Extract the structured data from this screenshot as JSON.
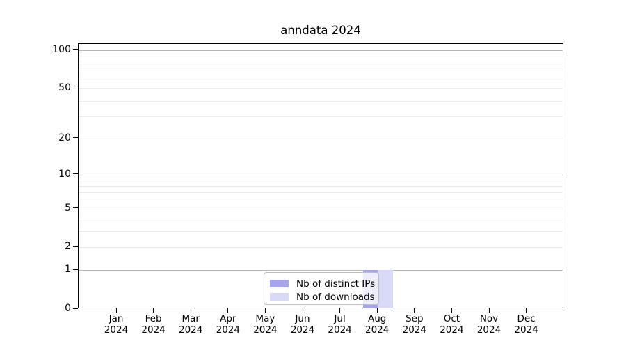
{
  "title": "anndata 2024",
  "colors": {
    "distinct_ips": "#a5a5ee",
    "downloads": "#d9d9f8",
    "grid_major": "#b9b9b9",
    "grid_minor": "#ebebeb",
    "axis": "#000000",
    "legend_border": "#c0c0c0"
  },
  "legend": {
    "items": [
      {
        "label": "Nb of distinct IPs",
        "color": "#a5a5ee"
      },
      {
        "label": "Nb of downloads",
        "color": "#d9d9f8"
      }
    ]
  },
  "x_axis": {
    "months": [
      "Jan",
      "Feb",
      "Mar",
      "Apr",
      "May",
      "Jun",
      "Jul",
      "Aug",
      "Sep",
      "Oct",
      "Nov",
      "Dec"
    ],
    "year": "2024"
  },
  "y_axis": {
    "tick_values": [
      100,
      50,
      20,
      10,
      5,
      2,
      1,
      0
    ],
    "major_gridline_values": [
      1,
      10,
      100
    ],
    "light_gridline_values": [
      2,
      5,
      20,
      50
    ],
    "minor_gridline_values": [
      3,
      4,
      6,
      7,
      8,
      9,
      30,
      40,
      60,
      70,
      80,
      90
    ]
  },
  "chart_data": {
    "type": "bar",
    "title": "anndata 2024",
    "categories": [
      "Jan 2024",
      "Feb 2024",
      "Mar 2024",
      "Apr 2024",
      "May 2024",
      "Jun 2024",
      "Jul 2024",
      "Aug 2024",
      "Sep 2024",
      "Oct 2024",
      "Nov 2024",
      "Dec 2024"
    ],
    "series": [
      {
        "name": "Nb of distinct IPs",
        "color": "#a5a5ee",
        "values": [
          0,
          0,
          0,
          0,
          0,
          0,
          0,
          1,
          0,
          0,
          0,
          0
        ]
      },
      {
        "name": "Nb of downloads",
        "color": "#d9d9f8",
        "values": [
          0,
          0,
          0,
          0,
          0,
          0,
          0,
          1,
          0,
          0,
          0,
          0
        ]
      }
    ],
    "xlabel": "",
    "ylabel": "",
    "ylim": [
      0,
      112
    ],
    "y_scale": "log10(1+value)",
    "y_ticks": [
      0,
      1,
      2,
      5,
      10,
      20,
      50,
      100
    ],
    "grid": true,
    "legend_position": "bottom-center"
  }
}
